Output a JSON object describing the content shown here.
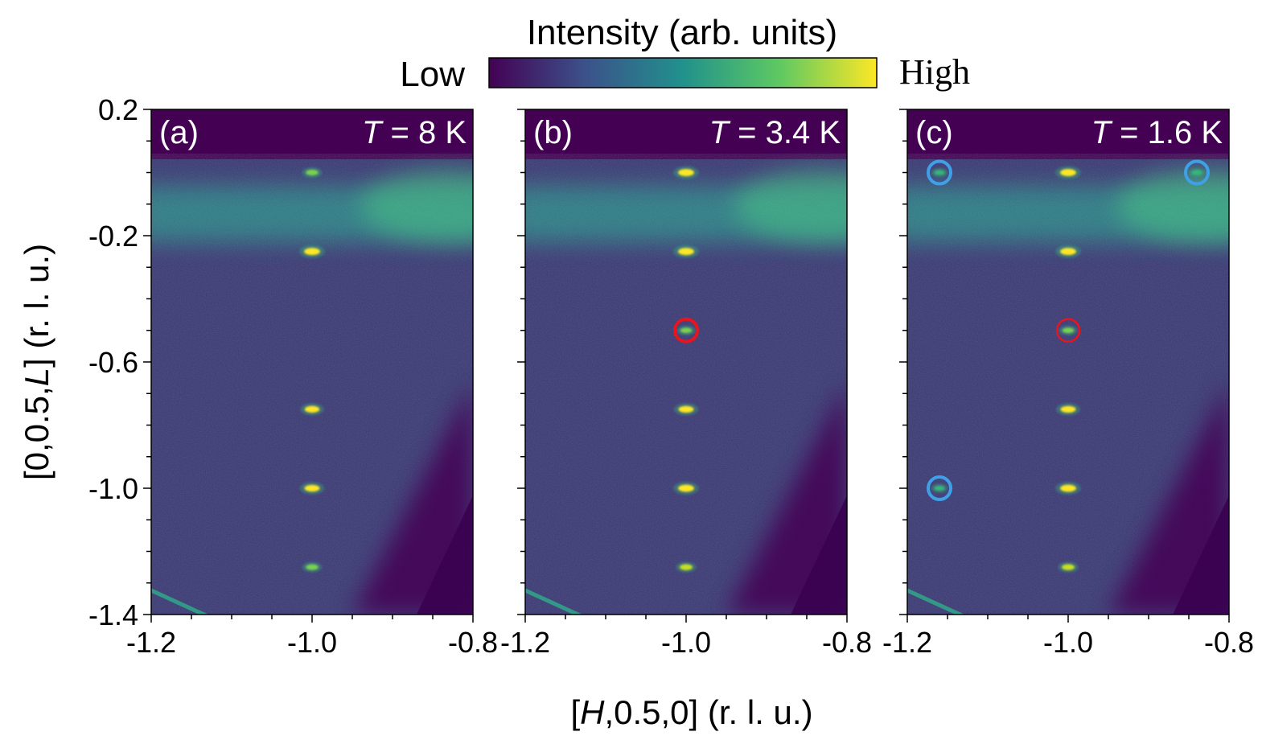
{
  "colorbar": {
    "title": "Intensity (arb. units)",
    "low_label": "Low",
    "high_label": "High",
    "stops": [
      "#440154",
      "#3b528b",
      "#21918c",
      "#5ec962",
      "#fde725"
    ]
  },
  "chart_data": {
    "type": "heatmap",
    "xlabel": {
      "prefix": "[",
      "italic": "H",
      "suffix": ",0.5,0] (r. l. u.)"
    },
    "ylabel": {
      "prefix": "[0,0.5,",
      "italic": "L",
      "suffix": "] (r. l. u.)"
    },
    "xlim": [
      -1.2,
      -0.8
    ],
    "ylim": [
      -1.4,
      0.2
    ],
    "x_major_ticks": [
      -1.2,
      -1.0,
      -0.8
    ],
    "x_tick_labels": [
      "-1.2",
      "-1.0",
      "-0.8"
    ],
    "y_major_ticks": [
      0.2,
      -0.2,
      -0.6,
      -1.0,
      -1.4
    ],
    "y_tick_labels": [
      "0.2",
      "-0.2",
      "-0.6",
      "-1.0",
      "-1.4"
    ],
    "panels": [
      {
        "label": "(a)",
        "temperature": {
          "symbol": "T",
          "text": " = 8 K"
        },
        "peaks": [
          {
            "H": -1.0,
            "L": 0.0,
            "intensity": 0.55
          },
          {
            "H": -1.0,
            "L": -0.25,
            "intensity": 1.0
          },
          {
            "H": -1.0,
            "L": -0.75,
            "intensity": 0.85
          },
          {
            "H": -1.0,
            "L": -1.0,
            "intensity": 0.9
          },
          {
            "H": -1.0,
            "L": -1.25,
            "intensity": 0.55
          }
        ],
        "markers": []
      },
      {
        "label": "(b)",
        "temperature": {
          "symbol": "T",
          "text": " = 3.4 K"
        },
        "peaks": [
          {
            "H": -1.0,
            "L": 0.0,
            "intensity": 1.0
          },
          {
            "H": -1.0,
            "L": -0.25,
            "intensity": 1.0
          },
          {
            "H": -1.0,
            "L": -0.5,
            "intensity": 0.45
          },
          {
            "H": -1.0,
            "L": -0.75,
            "intensity": 0.9
          },
          {
            "H": -1.0,
            "L": -1.0,
            "intensity": 1.0
          },
          {
            "H": -1.0,
            "L": -1.25,
            "intensity": 0.6
          }
        ],
        "markers": [
          {
            "H": -1.0,
            "L": -0.5,
            "color": "#e8141e",
            "thick": true
          }
        ]
      },
      {
        "label": "(c)",
        "temperature": {
          "symbol": "T",
          "text": " = 1.6 K"
        },
        "peaks": [
          {
            "H": -1.0,
            "L": 0.0,
            "intensity": 1.0
          },
          {
            "H": -1.0,
            "L": -0.25,
            "intensity": 1.0
          },
          {
            "H": -1.0,
            "L": -0.5,
            "intensity": 0.45
          },
          {
            "H": -1.0,
            "L": -0.75,
            "intensity": 0.9
          },
          {
            "H": -1.0,
            "L": -1.0,
            "intensity": 1.0
          },
          {
            "H": -1.0,
            "L": -1.25,
            "intensity": 0.6
          },
          {
            "H": -1.16,
            "L": 0.0,
            "intensity": 0.3
          },
          {
            "H": -0.84,
            "L": 0.0,
            "intensity": 0.3
          },
          {
            "H": -1.16,
            "L": -1.0,
            "intensity": 0.3
          }
        ],
        "markers": [
          {
            "H": -1.0,
            "L": -0.5,
            "color": "#e8141e",
            "thick": false
          },
          {
            "H": -1.16,
            "L": 0.0,
            "color": "#3fa0e8",
            "thick": true
          },
          {
            "H": -0.84,
            "L": 0.0,
            "color": "#3fa0e8",
            "thick": true
          },
          {
            "H": -1.16,
            "L": -1.0,
            "color": "#3fa0e8",
            "thick": true
          }
        ]
      }
    ]
  }
}
